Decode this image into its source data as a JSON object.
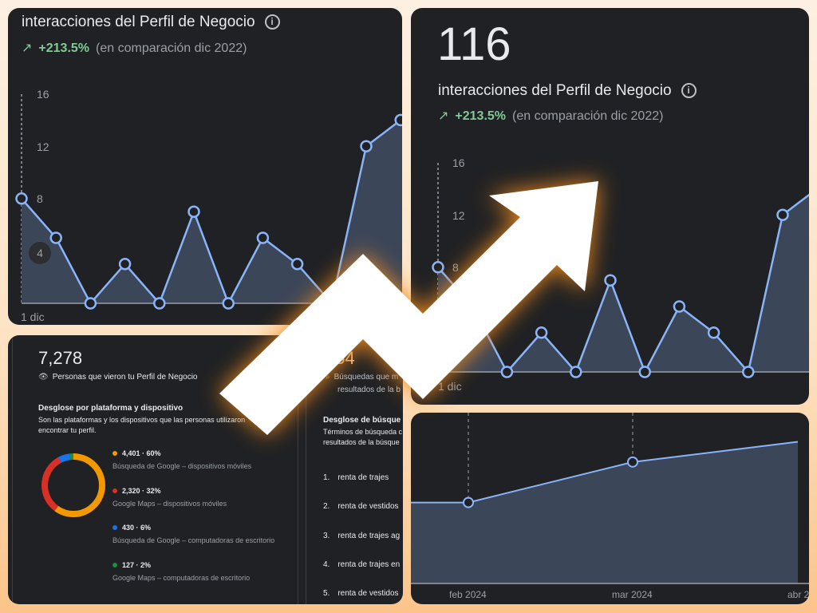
{
  "colors": {
    "panel": "#202124",
    "line": "#8ab4f8",
    "fill": "#3c4659",
    "positive": "#81c995",
    "arrow_glow": "#f08a1c"
  },
  "card_small": {
    "title": "interacciones del Perfil de Negocio",
    "info_icon": "info-icon",
    "trend_icon": "trending-up-icon",
    "change": "+213.5%",
    "comparison": "(en comparación dic 2022)",
    "y_ticks": [
      "16",
      "12",
      "8",
      "4"
    ],
    "x_label": "1 dic"
  },
  "card_large": {
    "total": "116",
    "title": "interacciones del Perfil de Negocio",
    "info_icon": "info-icon",
    "trend_icon": "trending-up-icon",
    "change": "+213.5%",
    "comparison": "(en comparación dic 2022)",
    "y_ticks": [
      "16",
      "12",
      "8"
    ],
    "x_label": "1 dic"
  },
  "views_card": {
    "total": "7,278",
    "label": "Personas que vieron tu Perfil de Negocio",
    "breakdown_title": "Desglose por plataforma y dispositivo",
    "breakdown_desc_1": "Son las plataformas y los dispositivos que las personas utilizaron",
    "breakdown_desc_2": "encontrar tu perfil.",
    "segments": [
      {
        "value": "4,401 · 60%",
        "label": "Búsqueda de Google – dispositivos móviles",
        "color": "#f29900",
        "pct": 60
      },
      {
        "value": "2,320 · 32%",
        "label": "Google Maps – dispositivos móviles",
        "color": "#d93025",
        "pct": 32
      },
      {
        "value": "430 · 6%",
        "label": "Búsqueda de Google – computadoras de escritorio",
        "color": "#1a73e8",
        "pct": 6
      },
      {
        "value": "127 · 2%",
        "label": "Google Maps – computadoras de escritorio",
        "color": "#1e8e3e",
        "pct": 2
      }
    ]
  },
  "search_card": {
    "total": "354",
    "label_1": "Búsquedas que m",
    "label_2": "resultados de la b",
    "breakdown_title": "Desglose de búsque",
    "breakdown_desc_1": "Términos de búsqueda c",
    "breakdown_desc_2": "resultados de la búsque",
    "terms": [
      {
        "n": "1.",
        "t": "renta de trajes"
      },
      {
        "n": "2.",
        "t": "renta de vestidos"
      },
      {
        "n": "3.",
        "t": "renta de trajes ag"
      },
      {
        "n": "4.",
        "t": "renta de trajes en"
      },
      {
        "n": "5.",
        "t": "renta de vestidos"
      }
    ]
  },
  "chart_data": [
    {
      "type": "area",
      "title": "interacciones del Perfil de Negocio",
      "x_first_label": "1 dic",
      "values": [
        8,
        5,
        0,
        3,
        0,
        7,
        0,
        5,
        3,
        0,
        12,
        14,
        13
      ],
      "ylim": [
        0,
        16
      ],
      "y_ticks": [
        4,
        8,
        12,
        16
      ]
    },
    {
      "type": "area",
      "x_ticks": [
        "feb 2024",
        "mar 2024",
        "abr 2"
      ],
      "values": [
        2,
        3,
        3.5
      ],
      "ylim": [
        0,
        4.2
      ]
    }
  ]
}
